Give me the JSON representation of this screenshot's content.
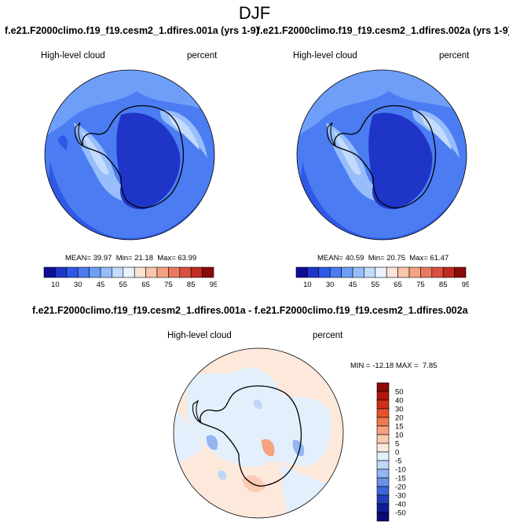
{
  "figure": {
    "title": "DJF",
    "panels": [
      {
        "title": "f.e21.F2000climo.f19_f19.cesm2_1.dfires.001a (yrs 1-9)",
        "left_label": "High-level cloud",
        "right_label": "percent",
        "stats": {
          "mean_label": "MEAN=",
          "mean": "39.97",
          "min_label": "Min=",
          "min": "21.18",
          "max_label": "Max=",
          "max": "63.99"
        }
      },
      {
        "title": "f.e21.F2000climo.f19_f19.cesm2_1.dfires.002a (yrs 1-9)",
        "left_label": "High-level cloud",
        "right_label": "percent",
        "stats": {
          "mean_label": "MEAN=",
          "mean": "40.59",
          "min_label": "Min=",
          "min": "20.75",
          "max_label": "Max=",
          "max": "61.47"
        }
      },
      {
        "title": "f.e21.F2000climo.f19_f19.cesm2_1.dfires.001a - f.e21.F2000climo.f19_f19.cesm2_1.dfires.002a",
        "left_label": "High-level cloud",
        "right_label": "percent",
        "stats": {
          "min_label": "MIN =",
          "min": "-12.18",
          "max_label": "MAX =",
          "max": "7.85"
        }
      }
    ]
  },
  "chart_data": [
    {
      "type": "heatmap",
      "projection": "south-polar-stereographic",
      "title": "f.e21.F2000climo.f19_f19.cesm2_1.dfires.001a (yrs 1-9)",
      "variable": "High-level cloud",
      "units": "percent",
      "colorbar": {
        "orientation": "horizontal",
        "labels": [
          "10",
          "30",
          "45",
          "55",
          "65",
          "75",
          "85",
          "95"
        ],
        "colors": [
          "#0d0d96",
          "#1f35c8",
          "#3058e6",
          "#4b7cf2",
          "#6e9ef8",
          "#97bdfb",
          "#c3dbfd",
          "#e9f2fe",
          "#fbe3d6",
          "#f9c5ac",
          "#f4a283",
          "#ea7a5e",
          "#d9503d",
          "#bf2a22",
          "#8b0a0a"
        ]
      },
      "mean": 39.97,
      "min": 21.18,
      "max": 63.99
    },
    {
      "type": "heatmap",
      "projection": "south-polar-stereographic",
      "title": "f.e21.F2000climo.f19_f19.cesm2_1.dfires.002a (yrs 1-9)",
      "variable": "High-level cloud",
      "units": "percent",
      "colorbar": {
        "orientation": "horizontal",
        "labels": [
          "10",
          "30",
          "45",
          "55",
          "65",
          "75",
          "85",
          "95"
        ],
        "colors": [
          "#0d0d96",
          "#1f35c8",
          "#3058e6",
          "#4b7cf2",
          "#6e9ef8",
          "#97bdfb",
          "#c3dbfd",
          "#e9f2fe",
          "#fbe3d6",
          "#f9c5ac",
          "#f4a283",
          "#ea7a5e",
          "#d9503d",
          "#bf2a22",
          "#8b0a0a"
        ]
      },
      "mean": 40.59,
      "min": 20.75,
      "max": 61.47
    },
    {
      "type": "heatmap",
      "projection": "south-polar-stereographic",
      "title": "f.e21.F2000climo.f19_f19.cesm2_1.dfires.001a - f.e21.F2000climo.f19_f19.cesm2_1.dfires.002a",
      "variable": "High-level cloud",
      "units": "percent",
      "colorbar": {
        "orientation": "vertical",
        "labels": [
          "50",
          "40",
          "30",
          "20",
          "15",
          "10",
          "5",
          "0",
          "-5",
          "-10",
          "-15",
          "-20",
          "-30",
          "-40",
          "-50"
        ],
        "colors": [
          "#8b0a0a",
          "#b3160f",
          "#cf3018",
          "#e4532c",
          "#ef7a50",
          "#f6a27e",
          "#fbcbb2",
          "#fde8dc",
          "#e3effc",
          "#c0d6f8",
          "#94b5f2",
          "#6990e8",
          "#3f66d8",
          "#2240b8",
          "#101d96",
          "#0a0a78"
        ]
      },
      "min": -12.18,
      "max": 7.85
    }
  ]
}
